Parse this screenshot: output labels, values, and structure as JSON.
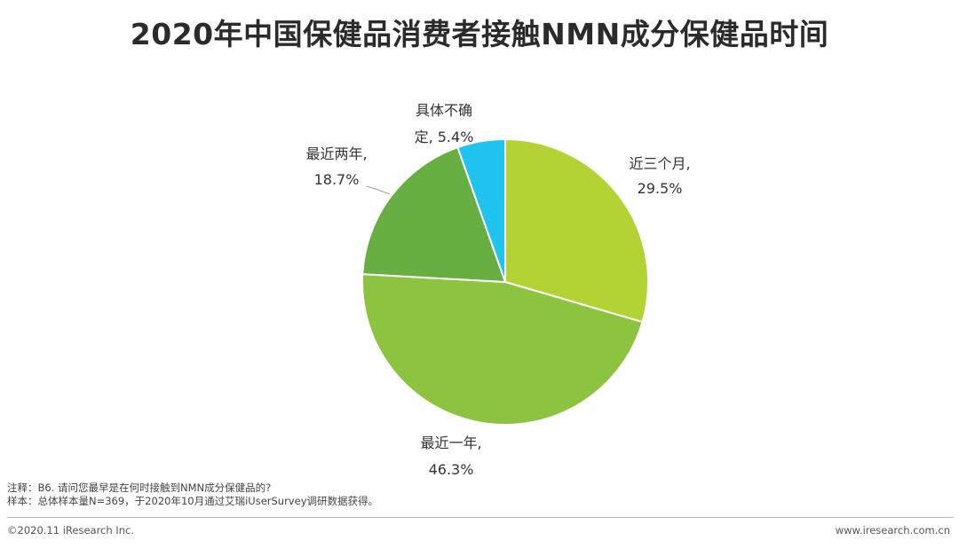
{
  "title": "2020年中国保健品消费者接触NMN成分保健品时间",
  "chart_data": {
    "type": "pie",
    "title": "2020年中国保健品消费者接触NMN成分保健品时间",
    "slices": [
      {
        "label_line1": "近三个月,",
        "label_line2": "29.5%",
        "value": 29.5,
        "color": "#b3d234"
      },
      {
        "label_line1": "最近一年,",
        "label_line2": "46.3%",
        "value": 46.3,
        "color": "#8cc43f"
      },
      {
        "label_line1": "最近两年,",
        "label_line2": "18.7%",
        "value": 18.7,
        "color": "#67ae43"
      },
      {
        "label_line1": "具体不确",
        "label_line2": "定, 5.4%",
        "value": 5.4,
        "color": "#1fc4ef"
      }
    ],
    "start": "12 o'clock",
    "direction": "clockwise",
    "legend": "none"
  },
  "notes": {
    "line1": "注释：B6. 请问您最早是在何时接触到NMN成分保健品的?",
    "line2": "样本：总体样本量N=369，于2020年10月通过艾瑞iUserSurvey调研数据获得。"
  },
  "footer": {
    "left": "©2020.11 iResearch Inc.",
    "right": "www.iresearch.com.cn"
  }
}
